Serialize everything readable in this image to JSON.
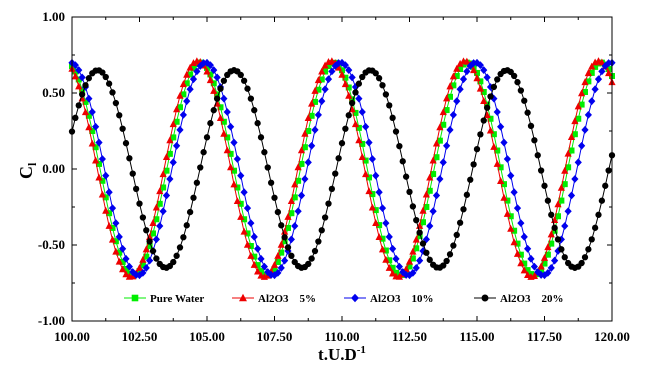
{
  "chart_data": {
    "type": "line",
    "xlabel": {
      "main": "t.U.D",
      "sup": "-1"
    },
    "ylabel": {
      "main": "C",
      "sub": "l"
    },
    "xlim": [
      100,
      120
    ],
    "ylim": [
      -1,
      1
    ],
    "xticks": [
      "100.00",
      "102.50",
      "105.00",
      "107.50",
      "110.00",
      "112.50",
      "115.00",
      "117.50",
      "120.00"
    ],
    "yticks": [
      "1.00",
      "0.50",
      "0.00",
      "-0.50",
      "-1.00"
    ],
    "legend_position": "bottom-center",
    "series": [
      {
        "name": "Pure Water",
        "legend_label": "Pure Water",
        "color": "#00ee00",
        "marker": "square",
        "amplitude": 0.7,
        "period": 4.95,
        "peak_x": 104.75
      },
      {
        "name": "Al2O3 5%",
        "legend_label": "Al2O3    5%",
        "color": "#ee0000",
        "marker": "triangle",
        "amplitude": 0.71,
        "period": 4.95,
        "peak_x": 104.65
      },
      {
        "name": "Al2O3 10%",
        "legend_label": "Al2O3    10%",
        "color": "#0000ee",
        "marker": "diamond",
        "amplitude": 0.7,
        "period": 5.0,
        "peak_x": 104.95
      },
      {
        "name": "Al2O3 20%",
        "legend_label": "Al2O3    20%",
        "color": "#000000",
        "marker": "circle",
        "amplitude": 0.65,
        "period": 5.05,
        "peak_x": 106.0
      }
    ]
  }
}
